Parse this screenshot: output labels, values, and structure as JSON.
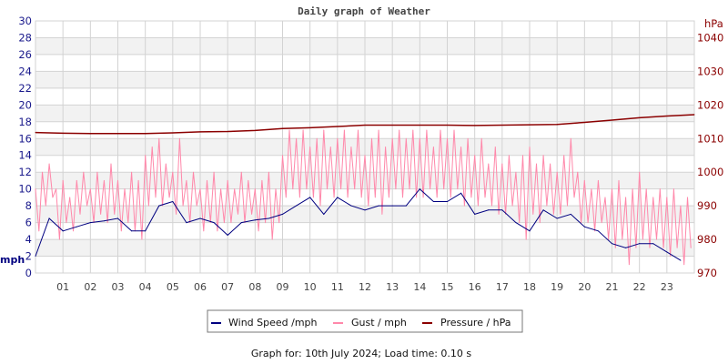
{
  "chart_data": {
    "type": "line",
    "title": "Daily graph of Weather",
    "ylabel_left": "mph",
    "ylabel_right": "hPa",
    "ylim_left": [
      0,
      30
    ],
    "ylim_right": [
      970,
      1045
    ],
    "yticks_left": [
      "0",
      "2",
      "4",
      "6",
      "8",
      "10",
      "12",
      "14",
      "16",
      "18",
      "20",
      "22",
      "24",
      "26",
      "28",
      "30"
    ],
    "yticks_right": [
      "970",
      "980",
      "990",
      "1000",
      "1010",
      "1020",
      "1030",
      "1040"
    ],
    "xticks": [
      "01",
      "02",
      "03",
      "04",
      "05",
      "06",
      "07",
      "08",
      "09",
      "10",
      "11",
      "12",
      "13",
      "14",
      "15",
      "16",
      "17",
      "18",
      "19",
      "20",
      "21",
      "22",
      "23"
    ],
    "xlim_hours": [
      0,
      24
    ],
    "grid": true,
    "legend_position": "bottom",
    "colors": {
      "wind": "#000080",
      "gust": "#ff88aa",
      "pressure": "#8b0000",
      "axis_left": "#1a1a8c",
      "axis_right": "#8b0000",
      "band": "#f2f2f2",
      "grid": "#d3d3d3"
    },
    "series": [
      {
        "name": "Wind Speed /mph",
        "axis": "left",
        "step_hours": 0.5,
        "values": [
          2,
          6.5,
          5,
          5.5,
          6,
          6.2,
          6.5,
          5,
          5,
          8,
          8.5,
          6,
          6.5,
          6,
          4.5,
          6,
          6.3,
          6.5,
          7,
          8,
          9,
          7,
          9,
          8,
          7.5,
          8,
          8,
          8,
          10,
          8.5,
          8.5,
          9.5,
          7,
          7.5,
          7.5,
          6,
          5,
          7.5,
          6.5,
          7,
          5.5,
          5,
          3.5,
          3,
          3.5,
          3.5,
          2.5,
          1.5
        ]
      },
      {
        "name": "Gust / mph",
        "axis": "left",
        "step_hours": 0.125,
        "values": [
          10,
          5,
          12,
          8,
          13,
          9,
          10,
          4,
          11,
          6,
          9,
          5,
          11,
          7,
          12,
          8,
          10,
          6,
          12,
          7,
          11,
          6,
          13,
          7,
          11,
          5,
          10,
          6,
          12,
          5,
          11,
          4,
          14,
          8,
          15,
          9,
          16,
          8,
          13,
          9,
          12,
          7,
          16,
          8,
          11,
          6,
          12,
          8,
          10,
          5,
          11,
          6,
          12,
          5,
          10,
          6,
          11,
          6,
          10,
          7,
          12,
          6,
          11,
          7,
          10,
          5,
          11,
          6,
          12,
          4,
          10,
          6,
          14,
          9,
          17,
          10,
          16,
          9,
          17,
          10,
          15,
          9,
          16,
          8,
          17,
          10,
          15,
          9,
          16,
          10,
          17,
          9,
          15,
          10,
          17,
          9,
          14,
          8,
          16,
          9,
          17,
          7,
          15,
          9,
          16,
          10,
          17,
          9,
          16,
          10,
          17,
          9,
          16,
          9,
          17,
          10,
          15,
          9,
          17,
          10,
          16,
          9,
          17,
          10,
          15,
          8,
          16,
          9,
          14,
          8,
          16,
          9,
          13,
          8,
          15,
          7,
          13,
          7,
          14,
          8,
          12,
          6,
          14,
          4,
          15,
          7,
          13,
          6,
          14,
          8,
          13,
          7,
          12,
          7,
          14,
          8,
          16,
          9,
          12,
          6,
          11,
          6,
          10,
          5,
          11,
          6,
          9,
          4,
          10,
          3,
          11,
          4,
          9,
          1,
          10,
          3,
          12,
          4,
          10,
          3,
          9,
          4,
          10,
          3,
          9,
          2,
          10,
          3,
          8,
          1,
          9,
          3
        ]
      },
      {
        "name": "Pressure / hPa",
        "axis": "right",
        "step_hours": 1,
        "values": [
          1011.8,
          1011.6,
          1011.5,
          1011.5,
          1011.5,
          1011.7,
          1012,
          1012.1,
          1012.4,
          1013,
          1013.2,
          1013.6,
          1014,
          1014,
          1014,
          1014,
          1013.9,
          1014,
          1014.1,
          1014.2,
          1014.8,
          1015.5,
          1016.2,
          1016.7,
          1017.1
        ]
      }
    ]
  },
  "legend": {
    "wind": "Wind Speed /mph",
    "gust": "Gust / mph",
    "pressure": "Pressure / hPa"
  },
  "footer": "Graph for: 10th July 2024; Load time: 0.10 s"
}
